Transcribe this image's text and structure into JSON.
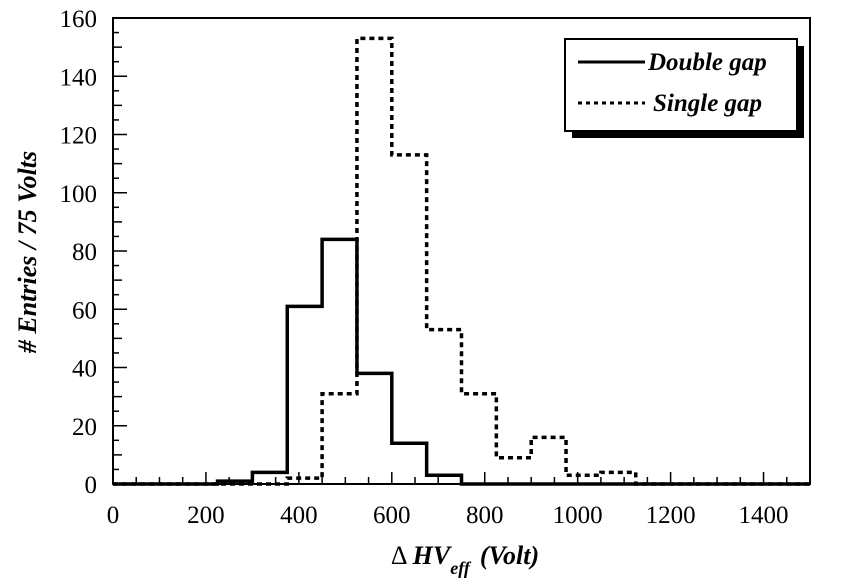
{
  "chart_data": {
    "type": "histogram",
    "xlabel": {
      "prefix": "Δ ",
      "main": "HV",
      "subscript": "eff",
      "suffix": "(Volt)"
    },
    "ylabel": "# Entries / 75 Volts",
    "xlim": [
      0,
      1500
    ],
    "ylim": [
      0,
      160
    ],
    "x_ticks": [
      0,
      200,
      400,
      600,
      800,
      1000,
      1200,
      1400
    ],
    "x_tick_labels": [
      "0",
      "200",
      "400",
      "600",
      "800",
      "1000",
      "1200",
      "1400"
    ],
    "y_ticks": [
      0,
      20,
      40,
      60,
      80,
      100,
      120,
      140,
      160
    ],
    "y_tick_labels": [
      "0",
      "20",
      "40",
      "60",
      "80",
      "100",
      "120",
      "140",
      "160"
    ],
    "grid": false,
    "legend_position": "top-right",
    "series": [
      {
        "name": "Double gap",
        "style": "solid",
        "bin_edges": [
          0,
          75,
          150,
          225,
          300,
          375,
          450,
          525,
          600,
          675,
          750,
          825,
          900,
          975,
          1050,
          1125,
          1200,
          1275,
          1350,
          1425,
          1500
        ],
        "counts": [
          0,
          0,
          0,
          1,
          4,
          61,
          84,
          38,
          14,
          3,
          0,
          0,
          0,
          0,
          0,
          0,
          0,
          0,
          0,
          0
        ]
      },
      {
        "name": "Single gap",
        "style": "dotted",
        "bin_edges": [
          0,
          75,
          150,
          225,
          300,
          375,
          450,
          525,
          600,
          675,
          750,
          825,
          900,
          975,
          1050,
          1125,
          1200,
          1275,
          1350,
          1425,
          1500
        ],
        "counts": [
          0,
          0,
          0,
          0,
          0,
          2,
          31,
          153,
          113,
          53,
          31,
          9,
          16,
          3,
          4,
          0,
          0,
          0,
          0,
          0
        ]
      }
    ]
  }
}
